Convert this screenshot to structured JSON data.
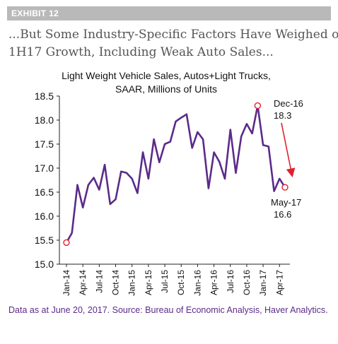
{
  "exhibit": {
    "label": "EXHIBIT 12"
  },
  "headline": {
    "line1": "...But Some Industry-Specific Factors Have Weighed on",
    "line2": "1H17 Growth, Including Weak Auto Sales..."
  },
  "source": {
    "text": "Data as at June 20, 2017. Source: Bureau of Economic Analysis, Haver Analytics."
  },
  "chart_data": {
    "type": "line",
    "title_lines": [
      "Light Weight Vehicle Sales, Autos+Light Trucks,",
      "SAAR, Millions of Units"
    ],
    "x": [
      "Jan-14",
      "Feb-14",
      "Mar-14",
      "Apr-14",
      "May-14",
      "Jun-14",
      "Jul-14",
      "Aug-14",
      "Sep-14",
      "Oct-14",
      "Nov-14",
      "Dec-14",
      "Jan-15",
      "Feb-15",
      "Mar-15",
      "Apr-15",
      "May-15",
      "Jun-15",
      "Jul-15",
      "Aug-15",
      "Sep-15",
      "Oct-15",
      "Nov-15",
      "Dec-15",
      "Jan-16",
      "Feb-16",
      "Mar-16",
      "Apr-16",
      "May-16",
      "Jun-16",
      "Jul-16",
      "Aug-16",
      "Sep-16",
      "Oct-16",
      "Nov-16",
      "Dec-16",
      "Jan-17",
      "Feb-17",
      "Mar-17",
      "Apr-17",
      "May-17"
    ],
    "series": [
      {
        "values": [
          15.45,
          15.65,
          16.65,
          16.18,
          16.65,
          16.8,
          16.55,
          17.07,
          16.25,
          16.35,
          16.93,
          16.9,
          16.78,
          16.48,
          17.33,
          16.78,
          17.6,
          17.12,
          17.5,
          17.55,
          17.97,
          18.05,
          18.12,
          17.42,
          17.75,
          17.6,
          16.58,
          17.33,
          17.13,
          16.78,
          17.8,
          16.9,
          17.66,
          17.92,
          17.72,
          18.3,
          17.48,
          17.45,
          16.52,
          16.78,
          16.6
        ]
      }
    ],
    "x_tick_labels": [
      "Jan-14",
      "Apr-14",
      "Jul-14",
      "Oct-14",
      "Jan-15",
      "Apr-15",
      "Jul-15",
      "Oct-15",
      "Jan-16",
      "Apr-16",
      "Jul-16",
      "Oct-16",
      "Jan-17",
      "Apr-17"
    ],
    "y_ticks": [
      "15.0",
      "15.5",
      "16.0",
      "16.5",
      "17.0",
      "17.5",
      "18.0",
      "18.5"
    ],
    "ylim": [
      15.0,
      18.5
    ],
    "annotations": [
      {
        "month": "Dec-16",
        "value": "18.3",
        "x_index": 35,
        "y": 18.3
      },
      {
        "month": "May-17",
        "value": "16.6",
        "x_index": 40,
        "y": 16.6
      }
    ],
    "highlighted_points": [
      0,
      35,
      40
    ],
    "colors": {
      "line": "#5b2b8a",
      "marker": "#e0202e",
      "arrow": "#e0202e"
    }
  }
}
